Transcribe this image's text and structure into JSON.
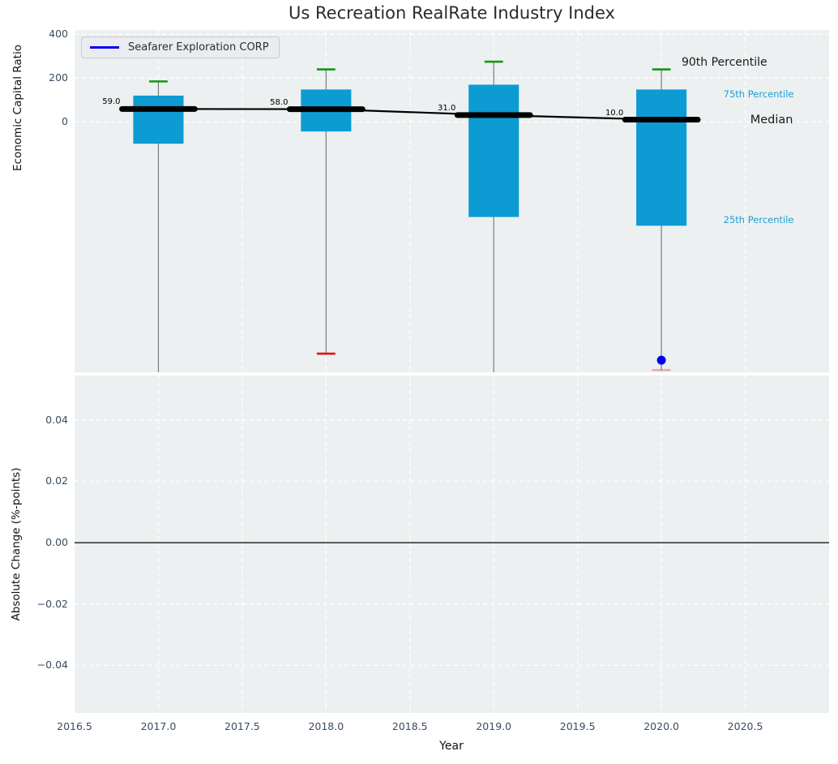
{
  "chart_data": {
    "type": "boxplot",
    "title": "Us Recreation RealRate Industry Index",
    "xlabel": "Year",
    "legend": {
      "label": "Seafarer Exploration CORP"
    },
    "colors": {
      "box": "#0d9bd3",
      "p90_cap": "#129612",
      "min_cap": "#e60b0b",
      "company": "#0000ee",
      "whisker": "#7a7a7a",
      "median": "#000000",
      "grid": "#ffffff",
      "axes_bg": "#ecf0f0",
      "tick_label": "#3a4b63",
      "percentile_cyan": "#1b9fd6"
    },
    "xticks": [
      {
        "v": 2016.5,
        "label": "2016.5"
      },
      {
        "v": 2017.0,
        "label": "2017.0"
      },
      {
        "v": 2017.5,
        "label": "2017.5"
      },
      {
        "v": 2018.0,
        "label": "2018.0"
      },
      {
        "v": 2018.5,
        "label": "2018.5"
      },
      {
        "v": 2019.0,
        "label": "2019.0"
      },
      {
        "v": 2019.5,
        "label": "2019.5"
      },
      {
        "v": 2020.0,
        "label": "2020.0"
      },
      {
        "v": 2020.5,
        "label": "2020.5"
      }
    ],
    "subplots": [
      {
        "ylabel": "Economic Capital Ratio",
        "xlim": [
          2016.5,
          2021.0
        ],
        "ylim": [
          -1145,
          420
        ],
        "yticks": [
          {
            "v": 400,
            "label": "400"
          },
          {
            "v": 200,
            "label": "200"
          },
          {
            "v": 0,
            "label": "0"
          }
        ],
        "boxes": [
          {
            "year": 2017,
            "p90": 185,
            "p75": 120,
            "median": 59,
            "p25": -100,
            "whisker_min": -1200,
            "min_clipped": true,
            "median_label": "59.0"
          },
          {
            "year": 2018,
            "p90": 240,
            "p75": 148,
            "median": 58,
            "p25": -44,
            "whisker_min": -1060,
            "min_clipped": false,
            "min_cap_faint": false,
            "median_label": "58.0"
          },
          {
            "year": 2019,
            "p90": 275,
            "p75": 170,
            "median": 31,
            "p25": -435,
            "whisker_min": -1200,
            "min_clipped": true,
            "median_label": "31.0"
          },
          {
            "year": 2020,
            "p90": 240,
            "p75": 148,
            "median": 10,
            "p25": -475,
            "whisker_min": -1135,
            "min_clipped": false,
            "min_cap_faint": true,
            "median_label": "10.0"
          }
        ],
        "series": [
          {
            "name": "Seafarer Exploration CORP",
            "color": "#0000ee",
            "points": [
              [
                2020,
                -1090
              ]
            ]
          }
        ],
        "annotations": [
          {
            "text": "90th Percentile",
            "x": 2020.12,
            "y": 270,
            "color": "#1a1a1a",
            "size": 14
          },
          {
            "text": "75th Percentile",
            "x": 2020.37,
            "y": 127,
            "color": "#1b9fd6",
            "size": 11.5
          },
          {
            "text": "Median",
            "x": 2020.53,
            "y": 8,
            "color": "#1a1a1a",
            "size": 14.5
          },
          {
            "text": "25th Percentile",
            "x": 2020.37,
            "y": -448,
            "color": "#1b9fd6",
            "size": 11.5
          }
        ]
      },
      {
        "ylabel": "Absolute Change (%-points)",
        "xlim": [
          2016.5,
          2021.0
        ],
        "ylim": [
          -0.0555,
          0.0545
        ],
        "yticks": [
          {
            "v": 0.04,
            "label": "0.04"
          },
          {
            "v": 0.02,
            "label": "0.02"
          },
          {
            "v": 0.0,
            "label": "0.00"
          },
          {
            "v": -0.02,
            "label": "−0.02"
          },
          {
            "v": -0.04,
            "label": "−0.04"
          }
        ],
        "zero_line": 0.0,
        "boxes": [],
        "series": []
      }
    ]
  }
}
